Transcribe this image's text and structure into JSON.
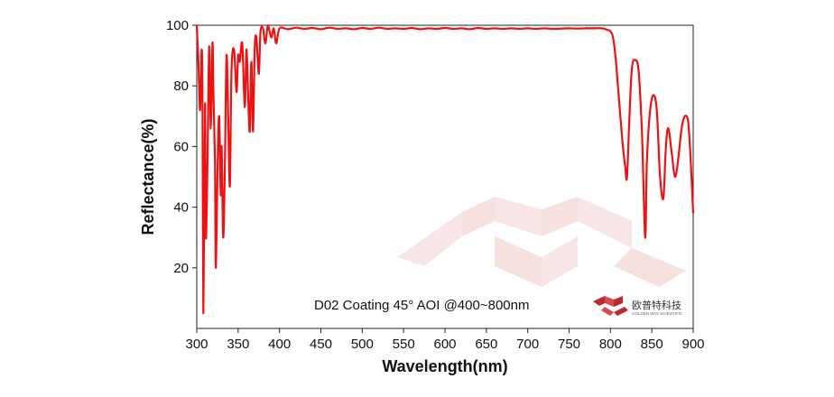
{
  "chart_data": {
    "type": "line",
    "title": "",
    "xlabel": "Wavelength(nm)",
    "ylabel": "Reflectance(%)",
    "xlim": [
      300,
      900
    ],
    "ylim": [
      0,
      100
    ],
    "x_ticks": [
      300,
      350,
      400,
      450,
      500,
      550,
      600,
      650,
      700,
      750,
      800,
      850,
      900
    ],
    "y_ticks": [
      20,
      40,
      60,
      80,
      100
    ],
    "grid": false,
    "annotation": "D02 Coating  45°  AOI @400~800nm",
    "colors": {
      "line": "#ee1111",
      "watermark": "#f6e2e2",
      "logo": "#c0282d"
    },
    "series": [
      {
        "x": [
          300,
          302,
          304,
          306,
          307,
          308,
          310,
          311,
          313,
          315,
          317,
          319,
          320,
          322,
          323,
          325,
          327,
          329,
          330,
          332,
          334,
          336,
          338,
          340,
          342,
          345,
          348,
          350,
          352,
          355,
          358,
          360,
          362,
          364,
          366,
          368,
          370,
          372,
          375,
          377,
          380,
          383,
          386,
          390,
          393,
          396,
          400,
          410,
          420,
          430,
          440,
          450,
          460,
          470,
          480,
          490,
          500,
          510,
          520,
          530,
          540,
          550,
          560,
          570,
          580,
          590,
          600,
          610,
          620,
          630,
          640,
          650,
          660,
          670,
          680,
          690,
          700,
          710,
          720,
          730,
          740,
          750,
          760,
          770,
          780,
          790,
          795,
          800,
          803,
          806,
          809,
          812,
          815,
          818,
          820,
          823,
          826,
          830,
          834,
          838,
          842,
          844,
          848,
          852,
          856,
          860,
          864,
          867,
          870,
          874,
          878,
          882,
          886,
          890,
          894,
          897,
          900
        ],
        "values": [
          100,
          88,
          72,
          92,
          72,
          5,
          74,
          30,
          55,
          93,
          66,
          94,
          80,
          55,
          20,
          50,
          70,
          44,
          60,
          30,
          55,
          90,
          70,
          47,
          85,
          92,
          78,
          90,
          88,
          94,
          73,
          92,
          78,
          65,
          88,
          65,
          92,
          96,
          84,
          98,
          99,
          94,
          100,
          96,
          99,
          94,
          99,
          98.7,
          99.2,
          98.8,
          99.1,
          98.7,
          99.2,
          98.8,
          99,
          98.7,
          99.1,
          98.8,
          99.2,
          98.8,
          99,
          98.8,
          99.1,
          98.7,
          99,
          98.8,
          99.1,
          98.8,
          99,
          98.7,
          99.1,
          98.8,
          99,
          98.8,
          99,
          98.8,
          99,
          98.8,
          99,
          98.8,
          98.9,
          99,
          98.9,
          99,
          99,
          99,
          98.6,
          98,
          96,
          90,
          80,
          70,
          60,
          53,
          50,
          70,
          86,
          88.5,
          85,
          65,
          30,
          55,
          72,
          77,
          72,
          50,
          43,
          60,
          66,
          58,
          50,
          56,
          66,
          70,
          68,
          55,
          38
        ]
      }
    ]
  },
  "logo": {
    "name": "欧普特科技",
    "subtitle": "GOLDEN WAY SCIENTIFIC"
  }
}
